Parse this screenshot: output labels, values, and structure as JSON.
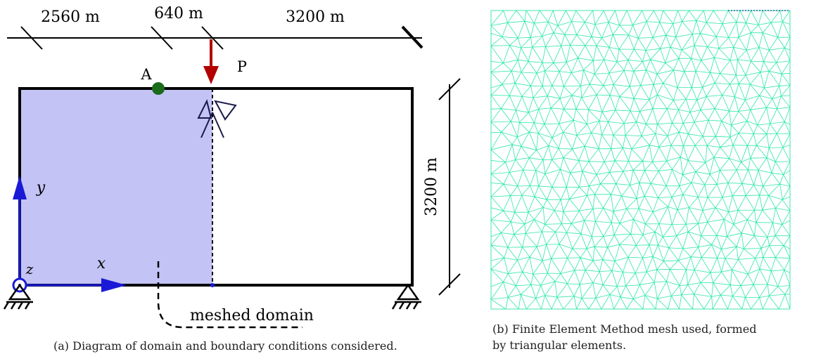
{
  "panel_a": {
    "dim_top_1": "2560 m",
    "dim_top_2": "640 m",
    "dim_top_3": "3200 m",
    "dim_side": "3200 m",
    "point_a": "A",
    "load_p": "P",
    "axis_x": "x",
    "axis_y": "y",
    "axis_z": "z",
    "meshed_domain": "meshed domain",
    "caption": "(a) Diagram of domain and boundary conditions considered."
  },
  "panel_b": {
    "caption_line1": "(b) Finite Element Method mesh used, formed",
    "caption_line2": "by triangular elements."
  },
  "colors": {
    "domain_fill": "#c3c3f5",
    "axis_blue": "#1a1ad6",
    "load_red": "#b30000",
    "point_green": "#1a6b1a",
    "mesh_green": "#2ee8a8",
    "support_navy": "#1a1a4a"
  }
}
